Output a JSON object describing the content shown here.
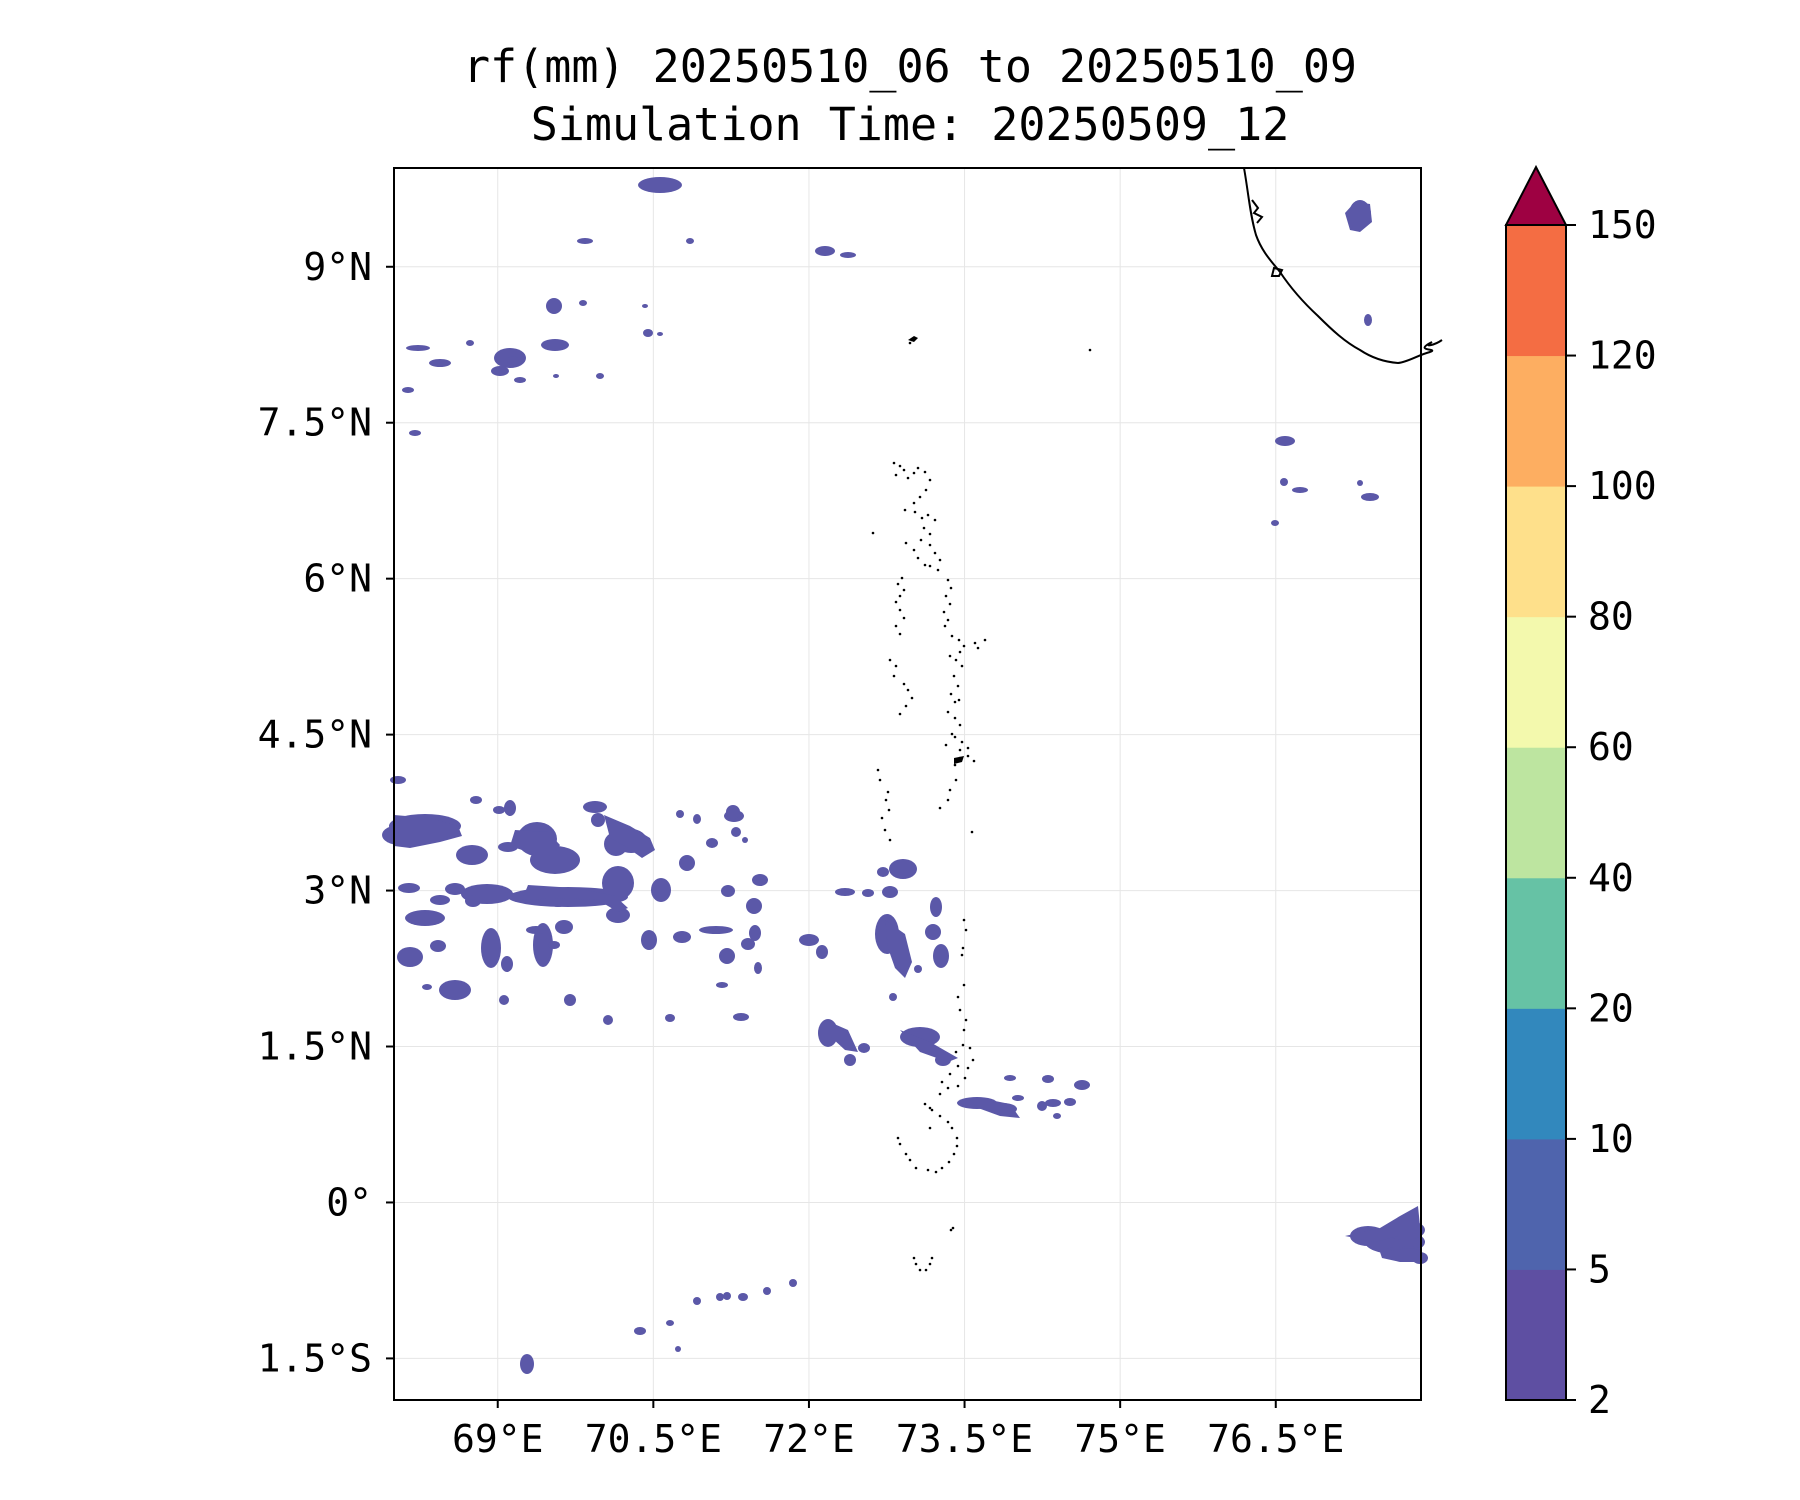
{
  "title": {
    "line1": "rf(mm) 20250510_06 to 20250510_09",
    "line2": "Simulation Time: 20250509_12"
  },
  "map": {
    "lon_range": [
      68.0,
      77.9
    ],
    "lat_range": [
      -1.9,
      9.95
    ],
    "lon_ticks": [
      {
        "value": 69.0,
        "label": "69°E"
      },
      {
        "value": 70.5,
        "label": "70.5°E"
      },
      {
        "value": 72.0,
        "label": "72°E"
      },
      {
        "value": 73.5,
        "label": "73.5°E"
      },
      {
        "value": 75.0,
        "label": "75°E"
      },
      {
        "value": 76.5,
        "label": "76.5°E"
      }
    ],
    "lat_ticks": [
      {
        "value": 9.0,
        "label": "9°N"
      },
      {
        "value": 7.5,
        "label": "7.5°N"
      },
      {
        "value": 6.0,
        "label": "6°N"
      },
      {
        "value": 4.5,
        "label": "4.5°N"
      },
      {
        "value": 3.0,
        "label": "3°N"
      },
      {
        "value": 1.5,
        "label": "1.5°N"
      },
      {
        "value": 0.0,
        "label": "0°"
      },
      {
        "value": -1.5,
        "label": "1.5°S"
      }
    ],
    "gridlines": true
  },
  "colorbar": {
    "levels": [
      "2",
      "5",
      "10",
      "20",
      "40",
      "60",
      "80",
      "100",
      "120",
      "150"
    ],
    "colors": [
      "#5e4fa2",
      "#4f64ad",
      "#3288bd",
      "#66c2a5",
      "#bde5a0",
      "#f3f9ad",
      "#fee08b",
      "#fdae61",
      "#f46d43",
      "#d53e4f"
    ],
    "extend_color": "#9e0142"
  },
  "rain_color": "#5b58a8",
  "coast_color": "#000000"
}
